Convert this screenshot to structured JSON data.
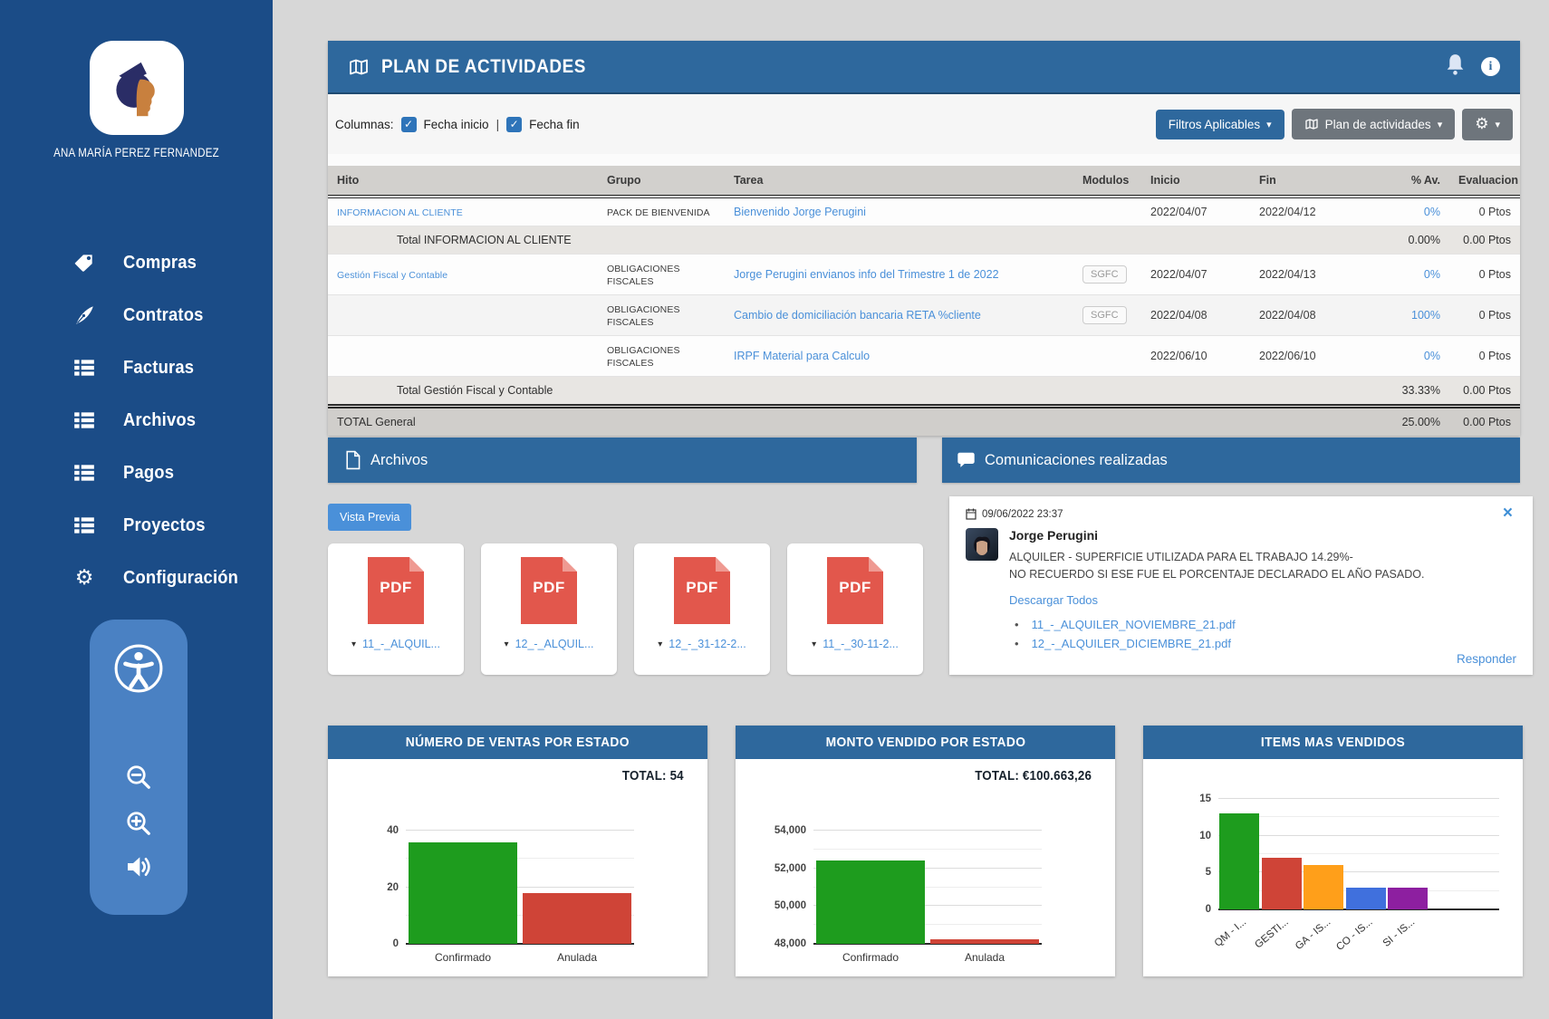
{
  "colors": {
    "sidebar_bg": "#1b4c87",
    "header_blue": "#2e689d",
    "widget_blue": "#4a81c3",
    "link_blue": "#4a90d9",
    "green": "#1e9c1e",
    "red": "#cf4437",
    "orange": "#ff9f1a",
    "royal_blue": "#4070dd",
    "purple": "#8d1fa0"
  },
  "sidebar": {
    "user_name": "ANA MARÍA PEREZ FERNANDEZ",
    "items": [
      {
        "label": "Compras",
        "icon": "tag-icon"
      },
      {
        "label": "Contratos",
        "icon": "pen-icon"
      },
      {
        "label": "Facturas",
        "icon": "list-icon"
      },
      {
        "label": "Archivos",
        "icon": "list-icon"
      },
      {
        "label": "Pagos",
        "icon": "list-icon"
      },
      {
        "label": "Proyectos",
        "icon": "list-icon"
      },
      {
        "label": "Configuración",
        "icon": "gear-icon"
      }
    ]
  },
  "plan": {
    "title": "PLAN DE ACTIVIDADES",
    "columnas_label": "Columnas:",
    "checkbox_fecha_inicio": "Fecha inicio",
    "separator": "|",
    "checkbox_fecha_fin": "Fecha fin",
    "filtros_button": "Filtros Aplicables",
    "plan_button": "Plan de actividades",
    "table": {
      "headers": {
        "hito": "Hito",
        "grupo": "Grupo",
        "tarea": "Tarea",
        "modulos": "Modulos",
        "inicio": "Inicio",
        "fin": "Fin",
        "avance": "% Av.",
        "evaluacion": "Evaluacion"
      },
      "rows": [
        {
          "hito": "INFORMACION AL CLIENTE",
          "grupo": "PACK DE BIENVENIDA",
          "tarea": "Bienvenido Jorge Perugini",
          "modulos": "",
          "inicio": "2022/04/07",
          "fin": "2022/04/12",
          "avance": "0%",
          "evaluacion": "0 Ptos"
        },
        {
          "label": "Total INFORMACION AL CLIENTE",
          "avance": "0.00%",
          "evaluacion": "0.00 Ptos"
        },
        {
          "hito": "Gestión Fiscal y Contable",
          "grupo": "OBLIGACIONES FISCALES",
          "tarea": "Jorge Perugini envianos info del Trimestre 1 de 2022",
          "modulos": "SGFC",
          "inicio": "2022/04/07",
          "fin": "2022/04/13",
          "avance": "0%",
          "evaluacion": "0 Ptos"
        },
        {
          "hito": "",
          "grupo": "OBLIGACIONES FISCALES",
          "tarea": "Cambio de domiciliación bancaria RETA %cliente",
          "modulos": "SGFC",
          "inicio": "2022/04/08",
          "fin": "2022/04/08",
          "avance": "100%",
          "evaluacion": "0 Ptos"
        },
        {
          "hito": "",
          "grupo": "OBLIGACIONES FISCALES",
          "tarea": "IRPF Material para Calculo",
          "modulos": "",
          "inicio": "2022/06/10",
          "fin": "2022/06/10",
          "avance": "0%",
          "evaluacion": "0 Ptos"
        },
        {
          "label": "Total Gestión Fiscal y Contable",
          "avance": "33.33%",
          "evaluacion": "0.00 Ptos"
        },
        {
          "label": "TOTAL General",
          "avance": "25.00%",
          "evaluacion": "0.00 Ptos"
        }
      ]
    }
  },
  "archivos": {
    "title": "Archivos",
    "vista_previa": "Vista Previa",
    "pdf_badge": "PDF",
    "files": [
      {
        "name": "11_-_ALQUIL..."
      },
      {
        "name": "12_-_ALQUIL..."
      },
      {
        "name": "12_-_31-12-2..."
      },
      {
        "name": "11_-_30-11-2..."
      }
    ]
  },
  "comunicaciones": {
    "title": "Comunicaciones realizadas",
    "date": "09/06/2022 23:37",
    "close": "×",
    "author": "Jorge Perugini",
    "message_line1": "ALQUILER - SUPERFICIE UTILIZADA PARA EL TRABAJO 14.29%-",
    "message_line2": "NO RECUERDO SI ESE FUE EL PORCENTAJE DECLARADO EL AÑO PASADO.",
    "descargar_todos": "Descargar Todos",
    "attachments": [
      {
        "name": "11_-_ALQUILER_NOVIEMBRE_21.pdf"
      },
      {
        "name": "12_-_ALQUILER_DICIEMBRE_21.pdf"
      }
    ],
    "responder": "Responder"
  },
  "chart_data": [
    {
      "type": "bar",
      "title": "NÚMERO DE VENTAS POR ESTADO",
      "total_label": "TOTAL: 54",
      "categories": [
        "Confirmado",
        "Anulada"
      ],
      "values": [
        36,
        18
      ],
      "colors": [
        "#1e9c1e",
        "#cf4437"
      ],
      "yaxis": {
        "min": 0,
        "max": 40,
        "gridlines": [
          10,
          20,
          30,
          40
        ],
        "labels": [
          {
            "v": 0,
            "t": "0"
          },
          {
            "v": 20,
            "t": "20"
          },
          {
            "v": 40,
            "t": "40"
          }
        ]
      },
      "rotate_labels": false,
      "bar_span_pct": 100
    },
    {
      "type": "bar",
      "title": "MONTO VENDIDO POR ESTADO",
      "total_label": "TOTAL: €100.663,26",
      "categories": [
        "Confirmado",
        "Anulada"
      ],
      "values": [
        52400,
        48250
      ],
      "colors": [
        "#1e9c1e",
        "#cf4437"
      ],
      "yaxis": {
        "min": 48000,
        "max": 54000,
        "gridlines": [
          49000,
          50000,
          51000,
          52000,
          53000,
          54000
        ],
        "labels": [
          {
            "v": 48000,
            "t": "48,000"
          },
          {
            "v": 50000,
            "t": "50,000"
          },
          {
            "v": 52000,
            "t": "52,000"
          },
          {
            "v": 54000,
            "t": "54,000"
          }
        ]
      },
      "rotate_labels": false,
      "bar_span_pct": 100
    },
    {
      "type": "bar",
      "title": "ITEMS MAS VENDIDOS",
      "total_label": "",
      "categories": [
        "QM - I...",
        "GESTI...",
        "GA - IS...",
        "CO - IS...",
        "SI - IS..."
      ],
      "values": [
        13,
        7,
        6,
        3,
        3
      ],
      "colors": [
        "#1e9c1e",
        "#cf4437",
        "#ff9f1a",
        "#4070dd",
        "#8d1fa0"
      ],
      "yaxis": {
        "min": 0,
        "max": 15,
        "gridlines": [
          2.5,
          5,
          7.5,
          10,
          12.5,
          15
        ],
        "labels": [
          {
            "v": 0,
            "t": "0"
          },
          {
            "v": 5,
            "t": "5"
          },
          {
            "v": 10,
            "t": "10"
          },
          {
            "v": 15,
            "t": "15"
          }
        ]
      },
      "rotate_labels": true,
      "bar_span_pct": 75
    }
  ]
}
